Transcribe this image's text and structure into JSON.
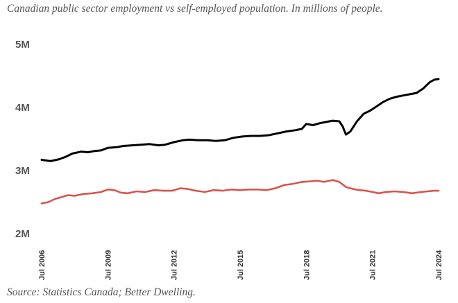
{
  "title": "Canadian public sector employment vs self-employed population. In millions of people.",
  "source": "Source: Statistics Canada; Better Dwelling.",
  "chart_data": {
    "type": "line",
    "title": "Canadian public sector employment vs self-employed population. In millions of people.",
    "xlabel": "",
    "ylabel": "",
    "x_range": [
      2006.5,
      2024.5
    ],
    "ylim": [
      2,
      5
    ],
    "y_ticks": [
      {
        "value": 5,
        "label": "5M"
      },
      {
        "value": 4,
        "label": "4M"
      },
      {
        "value": 3,
        "label": "3M"
      },
      {
        "value": 2,
        "label": "2M"
      }
    ],
    "x_ticks": [
      {
        "value": 2006.5,
        "label": "Jul 2006"
      },
      {
        "value": 2009.5,
        "label": "Jul 2009"
      },
      {
        "value": 2012.5,
        "label": "Jul 2012"
      },
      {
        "value": 2015.5,
        "label": "Jul 2015"
      },
      {
        "value": 2018.5,
        "label": "Jul 2018"
      },
      {
        "value": 2021.5,
        "label": "Jul 2021"
      },
      {
        "value": 2024.5,
        "label": "Jul 2024"
      }
    ],
    "grid": false,
    "series": [
      {
        "name": "Public sector employment",
        "color": "#000000",
        "points": [
          [
            2006.5,
            3.17
          ],
          [
            2006.9,
            3.15
          ],
          [
            2007.3,
            3.18
          ],
          [
            2007.6,
            3.22
          ],
          [
            2007.9,
            3.27
          ],
          [
            2008.3,
            3.3
          ],
          [
            2008.6,
            3.29
          ],
          [
            2008.9,
            3.31
          ],
          [
            2009.2,
            3.32
          ],
          [
            2009.5,
            3.36
          ],
          [
            2009.9,
            3.37
          ],
          [
            2010.2,
            3.39
          ],
          [
            2010.6,
            3.4
          ],
          [
            2011.0,
            3.41
          ],
          [
            2011.4,
            3.42
          ],
          [
            2011.8,
            3.4
          ],
          [
            2012.1,
            3.41
          ],
          [
            2012.5,
            3.45
          ],
          [
            2012.9,
            3.48
          ],
          [
            2013.2,
            3.49
          ],
          [
            2013.6,
            3.48
          ],
          [
            2014.0,
            3.48
          ],
          [
            2014.4,
            3.47
          ],
          [
            2014.8,
            3.48
          ],
          [
            2015.2,
            3.52
          ],
          [
            2015.6,
            3.54
          ],
          [
            2016.0,
            3.55
          ],
          [
            2016.4,
            3.55
          ],
          [
            2016.8,
            3.56
          ],
          [
            2017.2,
            3.59
          ],
          [
            2017.6,
            3.62
          ],
          [
            2018.0,
            3.64
          ],
          [
            2018.3,
            3.66
          ],
          [
            2018.5,
            3.74
          ],
          [
            2018.8,
            3.72
          ],
          [
            2019.1,
            3.75
          ],
          [
            2019.4,
            3.77
          ],
          [
            2019.7,
            3.79
          ],
          [
            2020.0,
            3.78
          ],
          [
            2020.15,
            3.7
          ],
          [
            2020.3,
            3.57
          ],
          [
            2020.5,
            3.62
          ],
          [
            2020.8,
            3.78
          ],
          [
            2021.1,
            3.9
          ],
          [
            2021.4,
            3.95
          ],
          [
            2021.7,
            4.02
          ],
          [
            2022.0,
            4.09
          ],
          [
            2022.3,
            4.14
          ],
          [
            2022.6,
            4.17
          ],
          [
            2022.9,
            4.19
          ],
          [
            2023.2,
            4.21
          ],
          [
            2023.5,
            4.23
          ],
          [
            2023.8,
            4.3
          ],
          [
            2024.1,
            4.4
          ],
          [
            2024.3,
            4.44
          ],
          [
            2024.5,
            4.45
          ]
        ]
      },
      {
        "name": "Self-employed population",
        "color": "#d9534f",
        "points": [
          [
            2006.5,
            2.48
          ],
          [
            2006.8,
            2.5
          ],
          [
            2007.1,
            2.55
          ],
          [
            2007.4,
            2.58
          ],
          [
            2007.7,
            2.61
          ],
          [
            2008.0,
            2.6
          ],
          [
            2008.4,
            2.63
          ],
          [
            2008.8,
            2.64
          ],
          [
            2009.2,
            2.66
          ],
          [
            2009.5,
            2.7
          ],
          [
            2009.8,
            2.69
          ],
          [
            2010.1,
            2.65
          ],
          [
            2010.4,
            2.64
          ],
          [
            2010.8,
            2.67
          ],
          [
            2011.2,
            2.66
          ],
          [
            2011.6,
            2.69
          ],
          [
            2012.0,
            2.68
          ],
          [
            2012.4,
            2.68
          ],
          [
            2012.8,
            2.72
          ],
          [
            2013.1,
            2.71
          ],
          [
            2013.5,
            2.68
          ],
          [
            2013.9,
            2.66
          ],
          [
            2014.3,
            2.69
          ],
          [
            2014.7,
            2.68
          ],
          [
            2015.1,
            2.7
          ],
          [
            2015.5,
            2.69
          ],
          [
            2015.9,
            2.7
          ],
          [
            2016.3,
            2.7
          ],
          [
            2016.7,
            2.69
          ],
          [
            2017.1,
            2.72
          ],
          [
            2017.5,
            2.77
          ],
          [
            2017.9,
            2.79
          ],
          [
            2018.3,
            2.82
          ],
          [
            2018.7,
            2.83
          ],
          [
            2019.0,
            2.84
          ],
          [
            2019.3,
            2.82
          ],
          [
            2019.7,
            2.85
          ],
          [
            2020.0,
            2.82
          ],
          [
            2020.3,
            2.74
          ],
          [
            2020.6,
            2.71
          ],
          [
            2020.9,
            2.69
          ],
          [
            2021.2,
            2.68
          ],
          [
            2021.5,
            2.66
          ],
          [
            2021.8,
            2.64
          ],
          [
            2022.1,
            2.66
          ],
          [
            2022.5,
            2.67
          ],
          [
            2022.9,
            2.66
          ],
          [
            2023.3,
            2.64
          ],
          [
            2023.7,
            2.66
          ],
          [
            2024.0,
            2.67
          ],
          [
            2024.3,
            2.68
          ],
          [
            2024.5,
            2.68
          ]
        ]
      }
    ]
  }
}
